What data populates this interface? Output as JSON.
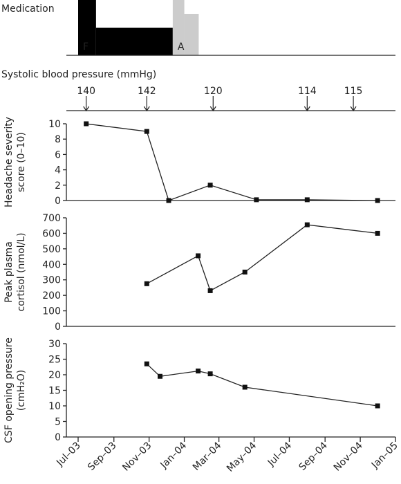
{
  "medication": {
    "label": "Medication",
    "bars": [
      {
        "label": "F",
        "color": "#000000",
        "start": "2003-07-01",
        "end": "2003-08-01",
        "level": 1.0
      },
      {
        "label": "",
        "color": "#000000",
        "start": "2003-08-01",
        "end": "2003-12-12",
        "level": 0.5
      },
      {
        "label": "A",
        "color": "#cccccc",
        "start": "2003-12-12",
        "end": "2004-01-01",
        "level": 1.0
      },
      {
        "label": "",
        "color": "#cccccc",
        "start": "2004-01-01",
        "end": "2004-01-26",
        "level": 0.75
      }
    ]
  },
  "bp": {
    "label": "Systolic blood pressure (mmHg)",
    "readings": [
      {
        "date": "2003-07-15",
        "value": "140"
      },
      {
        "date": "2003-10-28",
        "value": "142"
      },
      {
        "date": "2004-02-20",
        "value": "120"
      },
      {
        "date": "2004-08-01",
        "value": "114"
      },
      {
        "date": "2004-10-20",
        "value": "115"
      }
    ]
  },
  "chart_data": [
    {
      "type": "line",
      "ylabel": [
        "Headache severity",
        "score (0–10)"
      ],
      "ylim": [
        0,
        10
      ],
      "yticks": [
        0,
        2,
        4,
        6,
        8,
        10
      ],
      "baseline_axis": true,
      "x": [
        "2003-07-15",
        "2003-10-28",
        "2003-12-05",
        "2004-02-15",
        "2004-05-05",
        "2004-08-01",
        "2004-12-01"
      ],
      "values": [
        10,
        9,
        0,
        2,
        0.1,
        0.1,
        0
      ]
    },
    {
      "type": "line",
      "ylabel": [
        "Peak plasma",
        "cortisol (nmol/L)"
      ],
      "ylim": [
        0,
        700
      ],
      "yticks": [
        0,
        100,
        200,
        300,
        400,
        500,
        600,
        700
      ],
      "x": [
        "2003-10-28",
        "2004-01-25",
        "2004-02-15",
        "2004-04-15",
        "2004-08-01",
        "2004-12-01"
      ],
      "values": [
        275,
        455,
        230,
        350,
        655,
        600
      ]
    },
    {
      "type": "line",
      "ylabel": [
        "CSF opening pressure",
        "(cmH₂O)"
      ],
      "ylim": [
        0,
        30
      ],
      "yticks": [
        0,
        5,
        10,
        15,
        20,
        25,
        30
      ],
      "x": [
        "2003-10-28",
        "2003-11-20",
        "2004-01-25",
        "2004-02-15",
        "2004-04-15",
        "2004-12-01"
      ],
      "values": [
        23.5,
        19.5,
        21.2,
        20.3,
        16,
        10
      ]
    }
  ],
  "x_axis": {
    "range": [
      "2003-07-01",
      "2005-01-01"
    ],
    "ticks": [
      {
        "date": "2003-07-01",
        "label": "Jul–03"
      },
      {
        "date": "2003-09-01",
        "label": "Sep–03"
      },
      {
        "date": "2003-11-01",
        "label": "Nov–03"
      },
      {
        "date": "2004-01-01",
        "label": "Jan–04"
      },
      {
        "date": "2004-03-01",
        "label": "Mar–04"
      },
      {
        "date": "2004-05-01",
        "label": "May–04"
      },
      {
        "date": "2004-07-01",
        "label": "Jul–04"
      },
      {
        "date": "2004-09-01",
        "label": "Sep–04"
      },
      {
        "date": "2004-11-01",
        "label": "Nov–04"
      },
      {
        "date": "2005-01-01",
        "label": "Jan–05"
      }
    ]
  }
}
